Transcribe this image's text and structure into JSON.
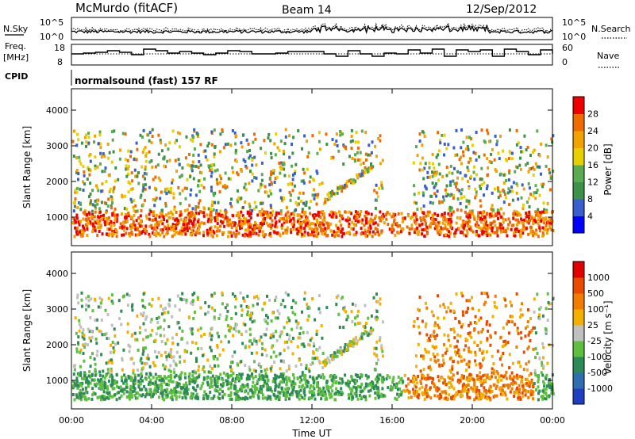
{
  "header": {
    "station": "McMurdo (fitACF)",
    "beam": "Beam 14",
    "date": "12/Sep/2012"
  },
  "noise_panel": {
    "left_label": "N.Sky",
    "right_label": "N.Search",
    "ticks": [
      "10^5",
      "10^0"
    ],
    "right_ticks": [
      "10^5",
      "10^0"
    ]
  },
  "freq_panel": {
    "left_label_line1": "Freq.",
    "left_label_line2": "[MHz]",
    "left_ticks": [
      "18",
      "8"
    ],
    "right_label": "Nave",
    "right_ticks": [
      "60",
      "0"
    ]
  },
  "cpid": {
    "label": "CPID",
    "value": "normalsound (fast) 157 RF"
  },
  "chart_data": [
    {
      "type": "heatmap",
      "name": "power-panel",
      "xlabel": "",
      "ylabel": "Slant Range [km]",
      "yticks": [
        "1000",
        "2000",
        "3000",
        "4000"
      ],
      "ylim": [
        200,
        4600
      ],
      "xlim": [
        "00:00",
        "24:00"
      ],
      "colorbar": {
        "label": "Power [dB]",
        "ticks": [
          "4",
          "8",
          "12",
          "16",
          "20",
          "24",
          "28"
        ],
        "colors": [
          "#0000ff",
          "#3a5fcd",
          "#3e9148",
          "#5bab52",
          "#e8d000",
          "#f2a300",
          "#f06b00",
          "#ee0000"
        ]
      }
    },
    {
      "type": "heatmap",
      "name": "velocity-panel",
      "xlabel": "Time UT",
      "ylabel": "Slant Range [km]",
      "yticks": [
        "1000",
        "2000",
        "3000",
        "4000"
      ],
      "ylim": [
        200,
        4600
      ],
      "xlim": [
        "00:00",
        "24:00"
      ],
      "xticks": [
        "00:00",
        "04:00",
        "08:00",
        "12:00",
        "16:00",
        "20:00",
        "00:00"
      ],
      "colorbar": {
        "label": "Velocity [m s⁻¹]",
        "ticks": [
          "1000",
          "500",
          "100",
          "25",
          "-25",
          "-100",
          "-500",
          "-1000"
        ],
        "colors": [
          "#1f3fbf",
          "#2f6fb0",
          "#2e8b57",
          "#5fbf3f",
          "#c0c0c0",
          "#f4b000",
          "#f07c00",
          "#e84a00",
          "#e00000"
        ]
      }
    }
  ]
}
